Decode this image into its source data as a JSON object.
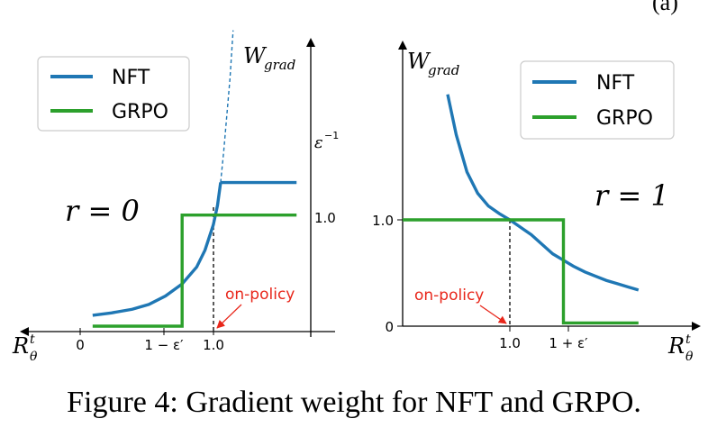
{
  "corner_mark": "(a)",
  "caption": "Figure 4: Gradient weight for NFT and GRPO.",
  "colors": {
    "nft": "#1f77b4",
    "grpo": "#2ca02c",
    "annotation": "#e8261a"
  },
  "chart_data": [
    {
      "type": "line",
      "panel_label": "r = 0",
      "x_axis_label": "R",
      "x_axis_label_sup": "t",
      "x_axis_label_sub": "θ",
      "y_axis_label": "W",
      "y_axis_label_sub": "grad",
      "x_ticks": [
        "0",
        "1 − ε′",
        "1.0"
      ],
      "y_tick_labels": [
        "ε",
        "1.0"
      ],
      "y_tick_sup": "−1",
      "legend": {
        "position": "top-left",
        "entries": [
          "NFT",
          "GRPO"
        ]
      },
      "annotation": "on-policy",
      "series": [
        {
          "name": "NFT",
          "segments": [
            {
              "style": "solid",
              "points": [
                [
                  0.06,
                  0.09
                ],
                [
                  0.15,
                  0.11
                ],
                [
                  0.25,
                  0.14
                ],
                [
                  0.33,
                  0.18
                ],
                [
                  0.41,
                  0.25
                ],
                [
                  0.49,
                  0.35
                ],
                [
                  0.56,
                  0.49
                ],
                [
                  0.6,
                  0.63
                ],
                [
                  0.64,
                  0.84
                ],
                [
                  0.66,
                  1.0
                ],
                [
                  0.675,
                  1.19
                ]
              ]
            },
            {
              "style": "dashed",
              "points": [
                [
                  0.675,
                  1.19
                ],
                [
                  0.69,
                  1.45
                ],
                [
                  0.705,
                  1.75
                ],
                [
                  0.72,
                  2.05
                ],
                [
                  0.735,
                  2.45
                ]
              ]
            },
            {
              "style": "solid",
              "points": [
                [
                  0.675,
                  1.19
                ],
                [
                  1.04,
                  1.19
                ]
              ]
            }
          ]
        },
        {
          "name": "GRPO",
          "segments": [
            {
              "style": "solid",
              "points": [
                [
                  0.06,
                  0
                ],
                [
                  0.49,
                  0
                ],
                [
                  0.49,
                  0.92
                ],
                [
                  1.04,
                  0.92
                ]
              ]
            }
          ]
        }
      ],
      "guide_x": 0.64
    },
    {
      "type": "line",
      "panel_label": "r = 1",
      "x_axis_label": "R",
      "x_axis_label_sup": "t",
      "x_axis_label_sub": "θ",
      "y_axis_label": "W",
      "y_axis_label_sub": "grad",
      "x_ticks": [
        "1.0",
        "1 + ε′"
      ],
      "y_tick_labels": [
        "0",
        "1.0"
      ],
      "legend": {
        "position": "top-right",
        "entries": [
          "NFT",
          "GRPO"
        ]
      },
      "annotation": "on-policy",
      "series": [
        {
          "name": "NFT",
          "segments": [
            {
              "style": "solid",
              "points": [
                [
                  0.42,
                  2.18
                ],
                [
                  0.5,
                  1.8
                ],
                [
                  0.6,
                  1.45
                ],
                [
                  0.7,
                  1.25
                ],
                [
                  0.8,
                  1.13
                ],
                [
                  0.9,
                  1.06
                ],
                [
                  1.0,
                  1.0
                ],
                [
                  1.1,
                  0.93
                ],
                [
                  1.2,
                  0.86
                ],
                [
                  1.3,
                  0.77
                ],
                [
                  1.4,
                  0.68
                ],
                [
                  1.5,
                  0.62
                ],
                [
                  1.6,
                  0.56
                ],
                [
                  1.7,
                  0.51
                ],
                [
                  1.8,
                  0.47
                ],
                [
                  1.9,
                  0.43
                ],
                [
                  2.0,
                  0.4
                ],
                [
                  2.1,
                  0.37
                ],
                [
                  2.2,
                  0.34
                ]
              ]
            }
          ]
        },
        {
          "name": "GRPO",
          "segments": [
            {
              "style": "solid",
              "points": [
                [
                  0.0,
                  1.0
                ],
                [
                  1.5,
                  1.0
                ],
                [
                  1.5,
                  0.03
                ],
                [
                  2.2,
                  0.03
                ]
              ]
            }
          ]
        }
      ],
      "guide_x": 1.0
    }
  ]
}
